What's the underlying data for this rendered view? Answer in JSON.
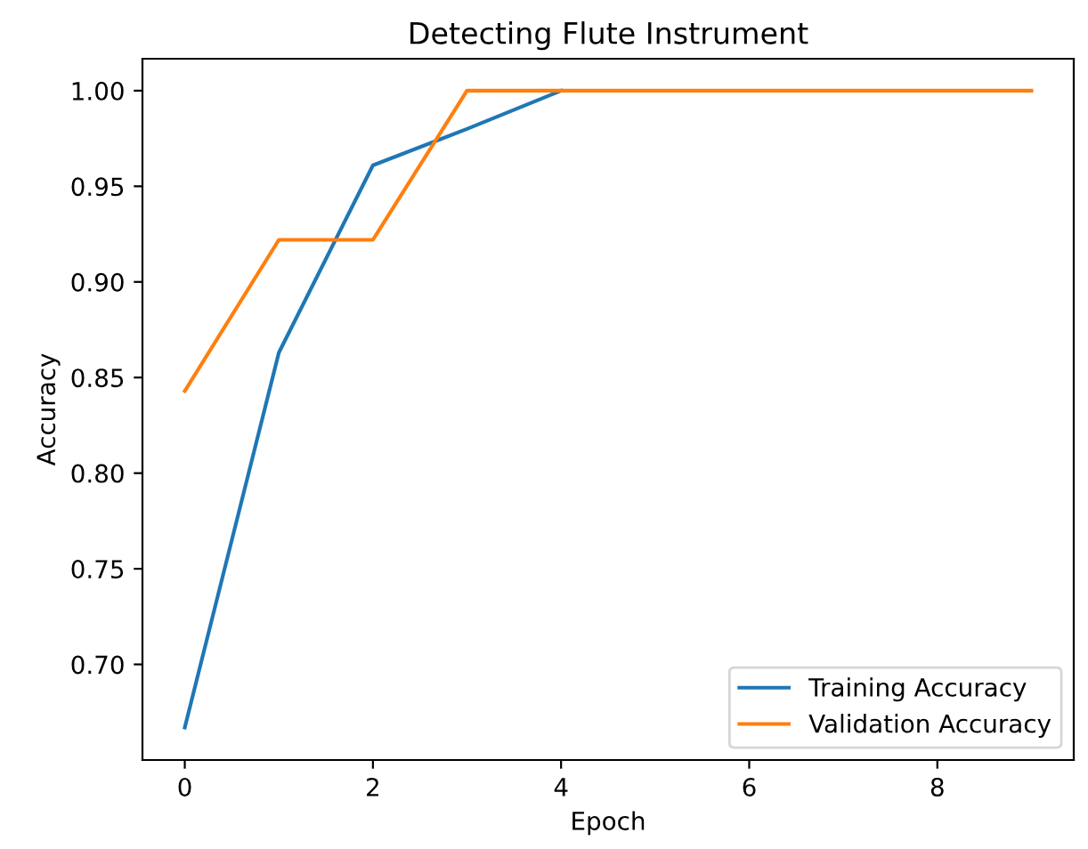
{
  "chart_data": {
    "type": "line",
    "title": "Detecting Flute Instrument",
    "xlabel": "Epoch",
    "ylabel": "Accuracy",
    "x": [
      0,
      1,
      2,
      3,
      4,
      5,
      6,
      7,
      8,
      9
    ],
    "series": [
      {
        "name": "Training Accuracy",
        "color": "#1f77b4",
        "values": [
          0.667,
          0.863,
          0.961,
          0.98,
          1.0,
          null,
          null,
          null,
          null,
          null
        ]
      },
      {
        "name": "Validation Accuracy",
        "color": "#ff7f0e",
        "values": [
          0.843,
          0.922,
          0.922,
          1.0,
          1.0,
          1.0,
          1.0,
          1.0,
          1.0,
          1.0
        ]
      }
    ],
    "xlim": [
      -0.45,
      9.45
    ],
    "ylim": [
      0.65,
      1.0167
    ],
    "xticks": [
      0,
      2,
      4,
      6,
      8
    ],
    "yticks": [
      {
        "value": 0.7,
        "label": "0.70"
      },
      {
        "value": 0.75,
        "label": "0.75"
      },
      {
        "value": 0.8,
        "label": "0.80"
      },
      {
        "value": 0.85,
        "label": "0.85"
      },
      {
        "value": 0.9,
        "label": "0.90"
      },
      {
        "value": 0.95,
        "label": "0.95"
      },
      {
        "value": 1.0,
        "label": "1.00"
      }
    ],
    "grid": false,
    "legend": "bottom right"
  }
}
